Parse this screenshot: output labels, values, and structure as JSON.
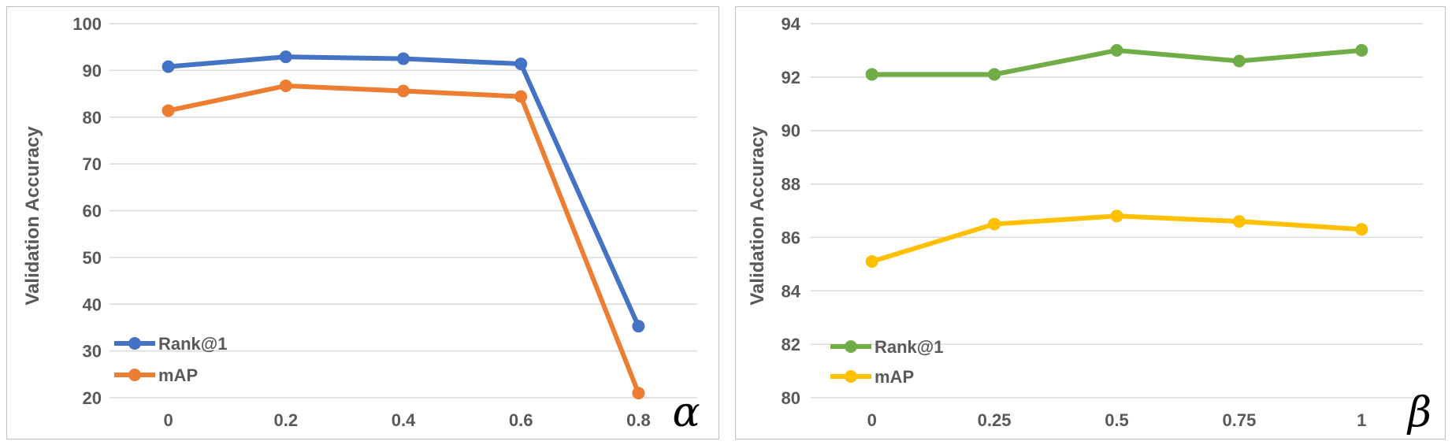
{
  "chart_data": [
    {
      "type": "line",
      "xlabel": "α",
      "ylabel": "Validation Accuracy",
      "categories": [
        "0",
        "0.2",
        "0.4",
        "0.6",
        "0.8"
      ],
      "ylim": [
        20,
        100
      ],
      "yticks": [
        20,
        30,
        40,
        50,
        60,
        70,
        80,
        90,
        100
      ],
      "grid": true,
      "legend_position": "bottom-left",
      "series": [
        {
          "name": "Rank@1",
          "color": "#4472C4",
          "values": [
            90.8,
            92.9,
            92.5,
            91.4,
            35.3
          ]
        },
        {
          "name": "mAP",
          "color": "#ED7D31",
          "values": [
            81.4,
            86.7,
            85.6,
            84.4,
            21.0
          ]
        }
      ]
    },
    {
      "type": "line",
      "xlabel": "β",
      "ylabel": "Validation Accuracy",
      "categories": [
        "0",
        "0.25",
        "0.5",
        "0.75",
        "1"
      ],
      "ylim": [
        80,
        94
      ],
      "yticks": [
        80,
        82,
        84,
        86,
        88,
        90,
        92,
        94
      ],
      "grid": true,
      "legend_position": "bottom-left",
      "series": [
        {
          "name": "Rank@1",
          "color": "#70AD47",
          "values": [
            92.1,
            92.1,
            93.0,
            92.6,
            93.0
          ]
        },
        {
          "name": "mAP",
          "color": "#FFC000",
          "values": [
            85.1,
            86.5,
            86.8,
            86.6,
            86.3
          ]
        }
      ]
    }
  ]
}
